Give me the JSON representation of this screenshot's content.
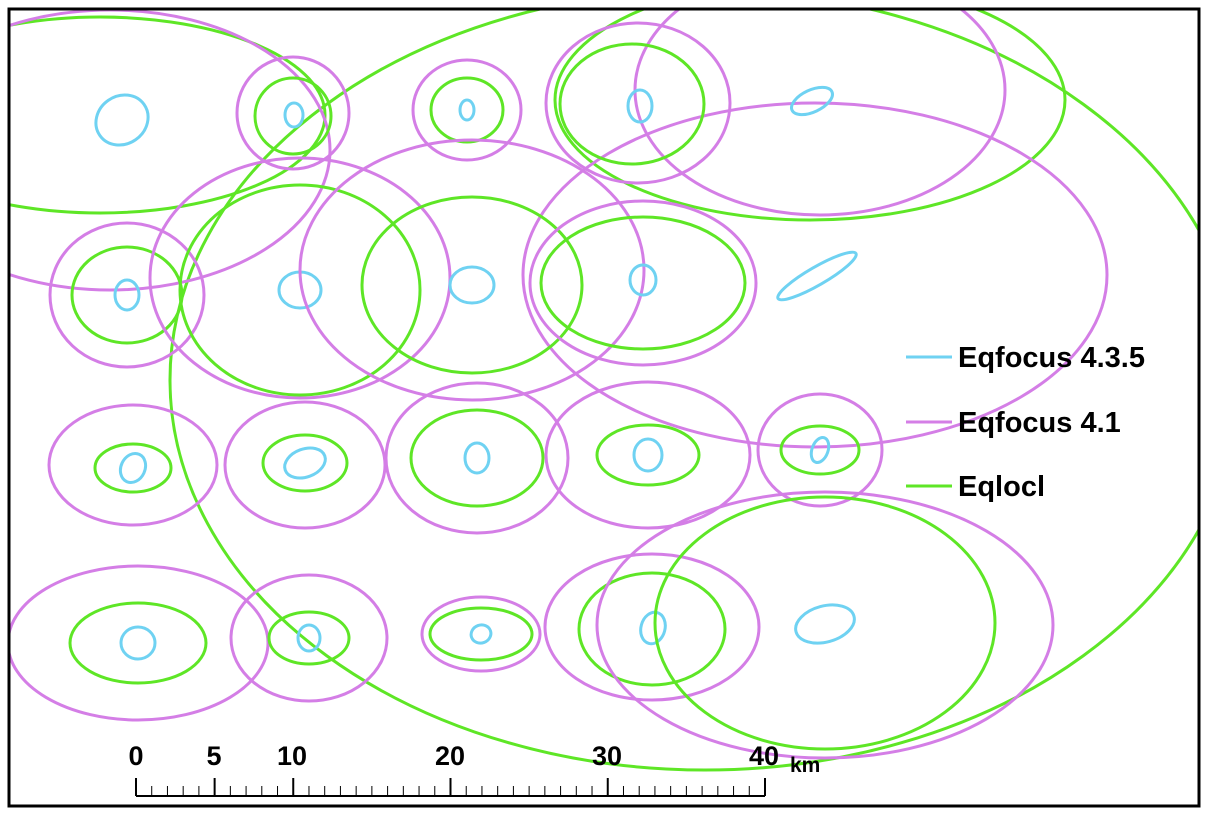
{
  "colors": {
    "eqfocus_435": "#6fd2f2",
    "eqfocus_41": "#d47ee6",
    "eqlocl": "#5ee626",
    "frame": "#000000",
    "background": "#ffffff"
  },
  "legend": {
    "items": [
      {
        "label": "Eqfocus 4.3.5",
        "color": "#6fd2f2"
      },
      {
        "label": "Eqfocus 4.1",
        "color": "#d47ee6"
      },
      {
        "label": "Eqlocl",
        "color": "#5ee626"
      }
    ]
  },
  "scale_bar": {
    "labels": [
      "0",
      "5",
      "10",
      "20",
      "30",
      "40"
    ],
    "unit": "km",
    "minor_divisions": 40
  }
}
